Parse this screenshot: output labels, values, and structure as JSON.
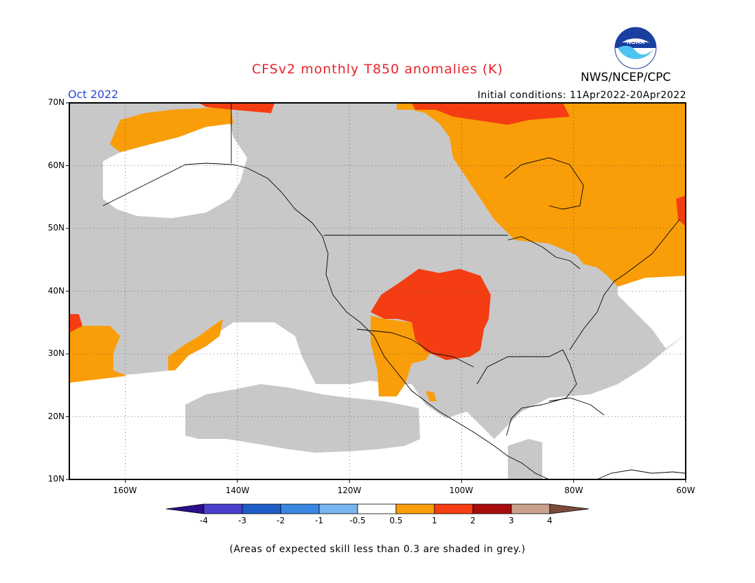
{
  "header": {
    "title": "CFSv2 monthly T850 anomalies (K)",
    "title_color": "#e8232a",
    "agency": "NWS/NCEP/CPC",
    "logo_text": "NOAA",
    "month": "Oct 2022",
    "month_color": "#2a44d8",
    "initial_conditions": "Initial conditions: 11Apr2022-20Apr2022"
  },
  "map": {
    "lat_labels": [
      "70N",
      "60N",
      "50N",
      "40N",
      "30N",
      "20N",
      "10N"
    ],
    "lon_labels": [
      "160W",
      "140W",
      "120W",
      "100W",
      "80W",
      "60W"
    ],
    "lat_range": [
      10,
      70
    ],
    "lon_range": [
      -170,
      -60
    ],
    "grey_color": "#c8c8c8",
    "anomaly_colors": {
      "0.5-1": "#f99d08",
      "1-2": "#f43d12",
      "2-3": "#a80c0c"
    }
  },
  "colorbar": {
    "labels": [
      "-4",
      "-3",
      "-2",
      "-1",
      "-0.5",
      "0.5",
      "1",
      "2",
      "3",
      "4"
    ],
    "colors": [
      "#2a0e8c",
      "#4a3fcd",
      "#1f5ec8",
      "#3a87e3",
      "#78b6f0",
      "#ffffff",
      "#f99d08",
      "#f43d12",
      "#a80c0c",
      "#c9a08c",
      "#7b4a3a"
    ]
  },
  "footnote": "(Areas of expected skill less than 0.3 are shaded in grey.)"
}
